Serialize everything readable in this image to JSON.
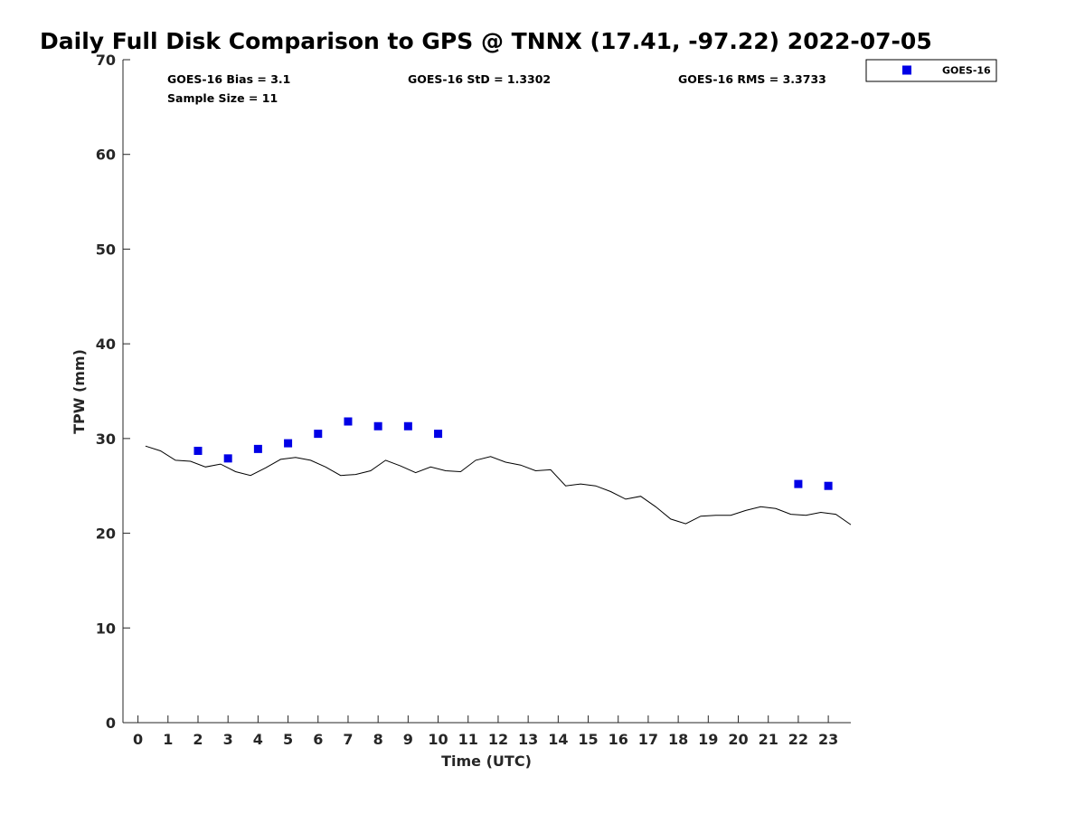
{
  "chart_data": {
    "type": "scatter",
    "title": "Daily Full Disk Comparison to GPS @ TNNX (17.41, -97.22) 2022-07-05",
    "xlabel": "Time (UTC)",
    "ylabel": "TPW (mm)",
    "xlim": [
      -0.5,
      23.75
    ],
    "ylim": [
      0,
      70
    ],
    "x_ticks": [
      "0",
      "1",
      "2",
      "3",
      "4",
      "5",
      "6",
      "7",
      "8",
      "9",
      "10",
      "11",
      "12",
      "13",
      "14",
      "15",
      "16",
      "17",
      "18",
      "19",
      "20",
      "21",
      "22",
      "23"
    ],
    "y_ticks": [
      "0",
      "10",
      "20",
      "30",
      "40",
      "50",
      "60",
      "70"
    ],
    "grid": false,
    "legend_position": "outside-top-right",
    "stats": {
      "bias": "GOES-16 Bias = 3.1",
      "std": "GOES-16 StD = 1.3302",
      "rms": "GOES-16 RMS = 3.3733",
      "sample": "Sample Size = 11"
    },
    "series": [
      {
        "name": "GOES-16",
        "kind": "scatter",
        "marker": "square",
        "color": "#0000e6",
        "points": [
          [
            2,
            28.7
          ],
          [
            3,
            27.9
          ],
          [
            4,
            28.9
          ],
          [
            5,
            29.5
          ],
          [
            6,
            30.5
          ],
          [
            7,
            31.8
          ],
          [
            8,
            31.3
          ],
          [
            9,
            31.3
          ],
          [
            10,
            30.5
          ],
          [
            22,
            25.2
          ],
          [
            23,
            25.0
          ]
        ]
      },
      {
        "kind": "line",
        "color": "#000000",
        "points": [
          [
            0.25,
            29.2
          ],
          [
            0.75,
            28.7
          ],
          [
            1.25,
            27.7
          ],
          [
            1.75,
            27.6
          ],
          [
            2.25,
            27.0
          ],
          [
            2.75,
            27.3
          ],
          [
            3.25,
            26.5
          ],
          [
            3.75,
            26.1
          ],
          [
            4.25,
            26.9
          ],
          [
            4.75,
            27.8
          ],
          [
            5.25,
            28.0
          ],
          [
            5.75,
            27.7
          ],
          [
            6.25,
            27.0
          ],
          [
            6.75,
            26.1
          ],
          [
            7.25,
            26.2
          ],
          [
            7.75,
            26.6
          ],
          [
            8.25,
            27.7
          ],
          [
            8.75,
            27.1
          ],
          [
            9.25,
            26.4
          ],
          [
            9.75,
            27.0
          ],
          [
            10.25,
            26.6
          ],
          [
            10.75,
            26.5
          ],
          [
            11.25,
            27.7
          ],
          [
            11.75,
            28.1
          ],
          [
            12.25,
            27.5
          ],
          [
            12.75,
            27.2
          ],
          [
            13.25,
            26.6
          ],
          [
            13.75,
            26.7
          ],
          [
            14.25,
            25.0
          ],
          [
            14.75,
            25.2
          ],
          [
            15.25,
            25.0
          ],
          [
            15.75,
            24.4
          ],
          [
            16.25,
            23.6
          ],
          [
            16.75,
            23.9
          ],
          [
            17.25,
            22.8
          ],
          [
            17.75,
            21.5
          ],
          [
            18.25,
            21.0
          ],
          [
            18.75,
            21.8
          ],
          [
            19.25,
            21.9
          ],
          [
            19.75,
            21.9
          ],
          [
            20.25,
            22.4
          ],
          [
            20.75,
            22.8
          ],
          [
            21.25,
            22.6
          ],
          [
            21.75,
            22.0
          ],
          [
            22.25,
            21.9
          ],
          [
            22.75,
            22.2
          ],
          [
            23.25,
            22.0
          ],
          [
            23.75,
            20.9
          ]
        ]
      }
    ]
  }
}
